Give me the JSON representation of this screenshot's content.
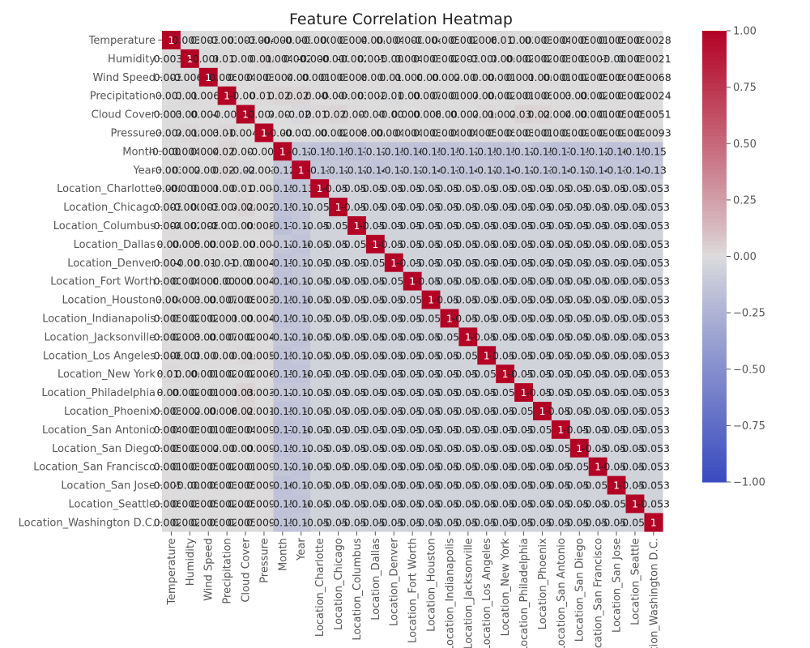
{
  "chart_data": {
    "type": "heatmap",
    "title": "Feature Correlation Heatmap",
    "labels": [
      "Temperature",
      "Humidity",
      "Wind Speed",
      "Precipitation",
      "Cloud Cover",
      "Pressure",
      "Month",
      "Year",
      "Location_Charlotte",
      "Location_Chicago",
      "Location_Columbus",
      "Location_Dallas",
      "Location_Denver",
      "Location_Fort Worth",
      "Location_Houston",
      "Location_Indianapolis",
      "Location_Jacksonville",
      "Location_Los Angeles",
      "Location_New York",
      "Location_Philadelphia",
      "Location_Phoenix",
      "Location_San Antonio",
      "Location_San Diego",
      "Location_San Francisco",
      "Location_San Jose",
      "Location_Seattle",
      "Location_Washington D.C."
    ],
    "colorbar": {
      "min": -1.0,
      "max": 1.0,
      "ticks": [
        "1.00",
        "0.75",
        "0.50",
        "0.25",
        "0.00",
        "−0.25",
        "−0.50",
        "−0.75",
        "−1.00"
      ],
      "colormap": "coolwarm"
    },
    "colors": {
      "pos": "#b40426",
      "neutral": "#dddddd",
      "neg": "#3b4cc0"
    },
    "location_location_corr": -0.053,
    "numeric_matrix": [
      [
        1,
        0.0031,
        0.0034,
        -0.0031,
        0.0033,
        -0.0042,
        -0.00048,
        -0.0036,
        -0.0004,
        0.0035,
        0.0043,
        0.004,
        0.0049,
        0.0004,
        -0.0042,
        0.0056,
        0.0028,
        0.0067,
        0.012,
        0.002,
        0.0038,
        0.0041,
        0.0055,
        0.0015,
        0.0057,
        0.0064,
        0.0028
      ],
      [
        0.0031,
        1,
        -0.0064,
        0.011,
        0.003,
        0.018,
        0.0048,
        0.0028,
        -6e-05,
        -0.0003,
        -0.0027,
        0.0058,
        -0.002,
        0.0042,
        0.0031,
        0.0028,
        0.0031,
        -0.0082,
        0.006,
        0.0021,
        0.0021,
        0.0039,
        0.0098,
        0.0038,
        -0.006,
        0.0036,
        0.0021
      ],
      [
        0.0034,
        -0.0064,
        1,
        0.0065,
        0.0041,
        0.0036,
        0.0045,
        0.003,
        0.0018,
        0.0037,
        0.0084,
        0.005,
        0.011,
        0.0004,
        0.001,
        0.0021,
        0.001,
        0.004,
        0.0013,
        0.0016,
        0.006,
        0.0017,
        0.0024,
        0.0057,
        0.0068,
        0.0057,
        0.0068
      ],
      [
        -0.0031,
        0.011,
        0.0065,
        1,
        -0.004,
        0.018,
        0.026,
        0.025,
        0.004,
        -0.0045,
        -0.0039,
        0.0026,
        -0.015,
        0.003,
        0.0075,
        0.0016,
        0.0079,
        0.004,
        0.0021,
        0.0016,
        0.0069,
        0.0039,
        0.005,
        0.0023,
        0.0034,
        0.0024,
        0.0024
      ],
      [
        0.0033,
        0.003,
        0.0041,
        -0.004,
        1,
        -0.0043,
        0.003,
        -0.027,
        0.014,
        0.028,
        0.009,
        -0.005,
        -0.005,
        0.00075,
        0.0087,
        0.003,
        0.0028,
        0.016,
        0.0028,
        0.038,
        0.025,
        0.0042,
        0.002,
        0.0018,
        0.0051,
        0.0051,
        0.0051
      ],
      [
        -0.0042,
        0.018,
        0.0036,
        0.018,
        -0.0043,
        1,
        -0.001,
        -0.0036,
        0.003,
        0.0027,
        0.0081,
        0.004,
        0.0046,
        0.0049,
        0.0035,
        0.0048,
        0.0047,
        0.0058,
        0.0065,
        0.0038,
        0.0018,
        0.0093,
        0.0093,
        0.0093,
        0.0093,
        0.0093,
        0.0093
      ],
      [
        -0.00048,
        0.0048,
        0.0045,
        0.026,
        0.003,
        -0.001,
        1,
        -0.12,
        -0.15,
        -0.15,
        -0.17,
        -0.12,
        -0.15,
        -0.16,
        -0.15,
        -0.15,
        -0.12,
        -0.15,
        -0.15,
        -0.12,
        -0.15,
        -0.17,
        -0.15,
        -0.12,
        -0.16,
        -0.15,
        -0.15
      ],
      [
        -0.0036,
        0.0028,
        0.003,
        0.025,
        -0.027,
        -0.0036,
        -0.12,
        1,
        -0.13,
        -0.12,
        -0.12,
        -0.14,
        -0.12,
        -0.12,
        -0.14,
        -0.13,
        -0.14,
        -0.12,
        -0.14,
        -0.12,
        -0.13,
        -0.14,
        -0.12,
        -0.14,
        -0.13,
        -0.14,
        -0.13
      ],
      [
        -0.0004,
        -6e-05,
        0.0018,
        0.004,
        0.014,
        0.003,
        -0.15,
        -0.13,
        1,
        -0.053,
        -0.053,
        -0.053,
        -0.053,
        -0.053,
        -0.053,
        -0.053,
        -0.053,
        -0.053,
        -0.053,
        -0.053,
        -0.053,
        -0.053,
        -0.053,
        -0.053,
        -0.053,
        -0.053,
        -0.053
      ],
      [
        0.0035,
        -0.0003,
        0.0037,
        -0.0045,
        0.028,
        0.0027,
        -0.15,
        -0.12,
        -0.053,
        1,
        -0.053,
        -0.053,
        -0.053,
        -0.053,
        -0.053,
        -0.053,
        -0.053,
        -0.053,
        -0.053,
        -0.053,
        -0.053,
        -0.053,
        -0.053,
        -0.053,
        -0.053,
        -0.053,
        -0.053
      ],
      [
        0.0043,
        -0.0027,
        0.0084,
        -0.0039,
        0.009,
        0.0081,
        -0.17,
        -0.12,
        -0.053,
        -0.053,
        1,
        -0.053,
        -0.053,
        -0.053,
        -0.053,
        -0.053,
        -0.053,
        -0.053,
        -0.053,
        -0.053,
        -0.053,
        -0.053,
        -0.053,
        -0.053,
        -0.053,
        -0.053,
        -0.053
      ],
      [
        0.004,
        0.0058,
        0.005,
        0.0026,
        -0.005,
        0.004,
        -0.12,
        -0.14,
        -0.053,
        -0.053,
        -0.053,
        1,
        -0.053,
        -0.053,
        -0.053,
        -0.053,
        -0.053,
        -0.053,
        -0.053,
        -0.053,
        -0.053,
        -0.053,
        -0.053,
        -0.053,
        -0.053,
        -0.053,
        -0.053
      ],
      [
        0.0049,
        -0.002,
        0.011,
        -0.015,
        -0.005,
        0.0046,
        -0.15,
        -0.12,
        -0.053,
        -0.053,
        -0.053,
        -0.053,
        1,
        -0.053,
        -0.053,
        -0.053,
        -0.053,
        -0.053,
        -0.053,
        -0.053,
        -0.053,
        -0.053,
        -0.053,
        -0.053,
        -0.053,
        -0.053,
        -0.053
      ],
      [
        0.0004,
        0.0042,
        0.0004,
        0.003,
        0.00075,
        0.0049,
        -0.16,
        -0.12,
        -0.053,
        -0.053,
        -0.053,
        -0.053,
        -0.053,
        1,
        -0.053,
        -0.053,
        -0.053,
        -0.053,
        -0.053,
        -0.053,
        -0.053,
        -0.053,
        -0.053,
        -0.053,
        -0.053,
        -0.053,
        -0.053
      ],
      [
        -0.0042,
        0.0031,
        0.001,
        0.0075,
        0.0087,
        0.0035,
        -0.15,
        -0.14,
        -0.053,
        -0.053,
        -0.053,
        -0.053,
        -0.053,
        -0.053,
        1,
        -0.053,
        -0.053,
        -0.053,
        -0.053,
        -0.053,
        -0.053,
        -0.053,
        -0.053,
        -0.053,
        -0.053,
        -0.053,
        -0.053
      ],
      [
        0.0056,
        0.0028,
        0.0021,
        0.0016,
        0.003,
        0.0048,
        -0.15,
        -0.13,
        -0.053,
        -0.053,
        -0.053,
        -0.053,
        -0.053,
        -0.053,
        -0.053,
        1,
        -0.053,
        -0.053,
        -0.053,
        -0.053,
        -0.053,
        -0.053,
        -0.053,
        -0.053,
        -0.053,
        -0.053,
        -0.053
      ],
      [
        0.0028,
        0.0031,
        0.001,
        0.0079,
        0.0028,
        0.0047,
        -0.12,
        -0.14,
        -0.053,
        -0.053,
        -0.053,
        -0.053,
        -0.053,
        -0.053,
        -0.053,
        -0.053,
        1,
        -0.053,
        -0.053,
        -0.053,
        -0.053,
        -0.053,
        -0.053,
        -0.053,
        -0.053,
        -0.053,
        -0.053
      ],
      [
        0.0067,
        -0.0082,
        0.004,
        0.004,
        0.016,
        0.0058,
        -0.15,
        -0.12,
        -0.053,
        -0.053,
        -0.053,
        -0.053,
        -0.053,
        -0.053,
        -0.053,
        -0.053,
        -0.053,
        1,
        -0.053,
        -0.053,
        -0.053,
        -0.053,
        -0.053,
        -0.053,
        -0.053,
        -0.053,
        -0.053
      ],
      [
        0.012,
        0.006,
        0.0013,
        0.0021,
        0.0028,
        0.0065,
        -0.15,
        -0.14,
        -0.053,
        -0.053,
        -0.053,
        -0.053,
        -0.053,
        -0.053,
        -0.053,
        -0.053,
        -0.053,
        -0.053,
        1,
        -0.053,
        -0.053,
        -0.053,
        -0.053,
        -0.053,
        -0.053,
        -0.053,
        -0.053
      ],
      [
        0.002,
        0.0021,
        0.0016,
        0.0016,
        0.038,
        0.0038,
        -0.12,
        -0.12,
        -0.053,
        -0.053,
        -0.053,
        -0.053,
        -0.053,
        -0.053,
        -0.053,
        -0.053,
        -0.053,
        -0.053,
        -0.053,
        1,
        -0.053,
        -0.053,
        -0.053,
        -0.053,
        -0.053,
        -0.053,
        -0.053
      ],
      [
        0.0038,
        0.0021,
        0.006,
        0.0069,
        0.025,
        0.0018,
        -0.15,
        -0.13,
        -0.053,
        -0.053,
        -0.053,
        -0.053,
        -0.053,
        -0.053,
        -0.053,
        -0.053,
        -0.053,
        -0.053,
        -0.053,
        -0.053,
        1,
        -0.053,
        -0.053,
        -0.053,
        -0.053,
        -0.053,
        -0.053
      ],
      [
        0.0041,
        0.0039,
        0.0017,
        0.0039,
        0.0042,
        0.0093,
        -0.17,
        -0.14,
        -0.053,
        -0.053,
        -0.053,
        -0.053,
        -0.053,
        -0.053,
        -0.053,
        -0.053,
        -0.053,
        -0.053,
        -0.053,
        -0.053,
        -0.053,
        1,
        -0.053,
        -0.053,
        -0.053,
        -0.053,
        -0.053
      ],
      [
        0.0055,
        0.0098,
        0.0024,
        0.005,
        0.002,
        0.0093,
        -0.15,
        -0.12,
        -0.053,
        -0.053,
        -0.053,
        -0.053,
        -0.053,
        -0.053,
        -0.053,
        -0.053,
        -0.053,
        -0.053,
        -0.053,
        -0.053,
        -0.053,
        -0.053,
        1,
        -0.053,
        -0.053,
        -0.053,
        -0.053
      ],
      [
        0.0015,
        0.0038,
        0.0057,
        0.0023,
        0.0018,
        0.0093,
        -0.12,
        -0.14,
        -0.053,
        -0.053,
        -0.053,
        -0.053,
        -0.053,
        -0.053,
        -0.053,
        -0.053,
        -0.053,
        -0.053,
        -0.053,
        -0.053,
        -0.053,
        -0.053,
        -0.053,
        1,
        -0.053,
        -0.053,
        -0.053
      ],
      [
        0.0057,
        -0.006,
        0.0068,
        0.0034,
        0.0051,
        0.0093,
        -0.16,
        -0.13,
        -0.053,
        -0.053,
        -0.053,
        -0.053,
        -0.053,
        -0.053,
        -0.053,
        -0.053,
        -0.053,
        -0.053,
        -0.053,
        -0.053,
        -0.053,
        -0.053,
        -0.053,
        -0.053,
        1,
        -0.053,
        -0.053
      ],
      [
        0.0064,
        0.0036,
        0.0057,
        0.0024,
        0.0051,
        0.0093,
        -0.15,
        -0.14,
        -0.053,
        -0.053,
        -0.053,
        -0.053,
        -0.053,
        -0.053,
        -0.053,
        -0.053,
        -0.053,
        -0.053,
        -0.053,
        -0.053,
        -0.053,
        -0.053,
        -0.053,
        -0.053,
        -0.053,
        1,
        -0.053
      ],
      [
        0.0028,
        0.0021,
        0.0068,
        0.0024,
        0.0051,
        0.0093,
        -0.15,
        -0.13,
        -0.053,
        -0.053,
        -0.053,
        -0.053,
        -0.053,
        -0.053,
        -0.053,
        -0.053,
        -0.053,
        -0.053,
        -0.053,
        -0.053,
        -0.053,
        -0.053,
        -0.053,
        -0.053,
        -0.053,
        -0.053,
        1
      ]
    ]
  }
}
